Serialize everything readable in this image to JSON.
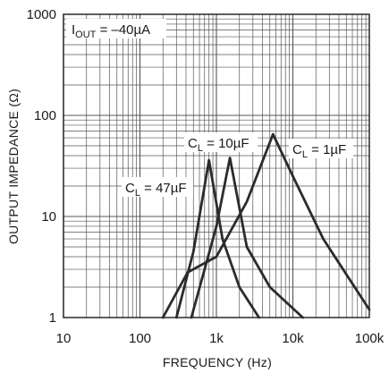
{
  "chart_data": {
    "type": "line",
    "xlabel": "FREQUENCY (Hz)",
    "ylabel": "OUTPUT IMPEDANCE (Ω)",
    "x_scale": "log",
    "y_scale": "log",
    "xlim": [
      10,
      100000
    ],
    "ylim": [
      1,
      1000
    ],
    "grid": true,
    "x_ticks": [
      {
        "value": 10,
        "label": "10"
      },
      {
        "value": 100,
        "label": "100"
      },
      {
        "value": 1000,
        "label": "1k"
      },
      {
        "value": 10000,
        "label": "10k"
      },
      {
        "value": 100000,
        "label": "100k"
      }
    ],
    "y_ticks": [
      {
        "value": 1,
        "label": "1"
      },
      {
        "value": 10,
        "label": "10"
      },
      {
        "value": 100,
        "label": "100"
      },
      {
        "value": 1000,
        "label": "1000"
      }
    ],
    "condition_box": {
      "main": "I",
      "sub": "OUT",
      "rest": " = –40µA"
    },
    "series": [
      {
        "id": "cl47",
        "label": {
          "main": "C",
          "sub": "L",
          "rest": " = 47µF"
        },
        "points": [
          [
            300,
            1
          ],
          [
            500,
            4.5
          ],
          [
            800,
            36
          ],
          [
            1200,
            6
          ],
          [
            2000,
            2
          ],
          [
            3600,
            1
          ]
        ]
      },
      {
        "id": "cl10",
        "label": {
          "main": "C",
          "sub": "L",
          "rest": " = 10µF"
        },
        "points": [
          [
            470,
            1
          ],
          [
            1000,
            8
          ],
          [
            1500,
            38
          ],
          [
            2500,
            5
          ],
          [
            5000,
            2
          ],
          [
            13500,
            1
          ]
        ]
      },
      {
        "id": "cl1",
        "label": {
          "main": "C",
          "sub": "L",
          "rest": " = 1µF"
        },
        "points": [
          [
            200,
            1
          ],
          [
            420,
            2.8
          ],
          [
            1000,
            4
          ],
          [
            2500,
            14
          ],
          [
            5500,
            65
          ],
          [
            10000,
            25
          ],
          [
            25000,
            6
          ],
          [
            100000,
            1.2
          ]
        ]
      }
    ]
  }
}
